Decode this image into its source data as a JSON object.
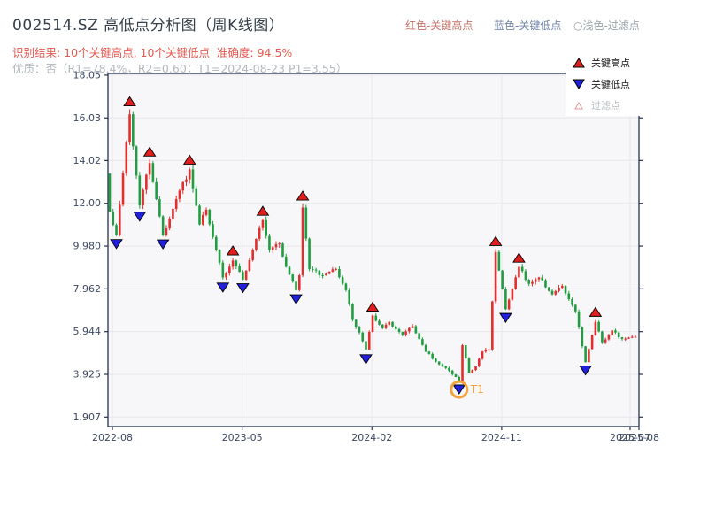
{
  "header": {
    "title": "002514.SZ 高低点分析图（周K线图）",
    "color_legend": [
      {
        "label": "红色-关键高点",
        "color": "#c4736b",
        "x": 458
      },
      {
        "label": "蓝色-关键低点",
        "color": "#7386a8",
        "x": 558
      },
      {
        "label": "○浅色-过滤点",
        "color": "#99a3a9",
        "x": 648
      }
    ],
    "result_line": "识别结果: 10个关键高点, 10个关键低点  准确度: 94.5%",
    "result_color": "#e25a52",
    "quality_line": "优质：否（R1=78.4%，R2=0.60；T1=2024-08-23 P1=3.55）"
  },
  "chart_legend": {
    "high": "关键高点",
    "low": "关键低点",
    "filter": "过滤点"
  },
  "chart_data": {
    "type": "candlestick",
    "timeframe": "weekly",
    "weeks_total": 159,
    "ylim": [
      1.46,
      18.13
    ],
    "y_tick_values": [
      18.05,
      16.03,
      14.02,
      12.0,
      9.98,
      7.962,
      5.944,
      3.925,
      1.907
    ],
    "y_tick_labels": [
      "18.05",
      "16.03",
      "14.02",
      "12.00",
      "9.980",
      "7.962",
      "5.944",
      "3.925",
      "1.907"
    ],
    "x_ticks": [
      {
        "label": "2022-08",
        "week": 0.8,
        "grid": true
      },
      {
        "label": "2023-05",
        "week": 39.8,
        "grid": true
      },
      {
        "label": "2024-02",
        "week": 78.8,
        "grid": true
      },
      {
        "label": "2024-11",
        "week": 117.8,
        "grid": true
      },
      {
        "label": "2025-07",
        "week": 156.4,
        "grid": true
      },
      {
        "label": "2025-08",
        "week": 159.2,
        "grid": false
      }
    ],
    "open_start": 13.4,
    "path_waypoints": [
      [
        0,
        11.6
      ],
      [
        2,
        10.5
      ],
      [
        6,
        16.2
      ],
      [
        9,
        11.9
      ],
      [
        12,
        13.9
      ],
      [
        16,
        10.5
      ],
      [
        20,
        12.2
      ],
      [
        24,
        13.6
      ],
      [
        27,
        11.0
      ],
      [
        29,
        11.7
      ],
      [
        34,
        8.5
      ],
      [
        37,
        9.3
      ],
      [
        40,
        8.4
      ],
      [
        43,
        9.8
      ],
      [
        46,
        11.2
      ],
      [
        48,
        9.8
      ],
      [
        51,
        10.1
      ],
      [
        53,
        9.0
      ],
      [
        56,
        7.9
      ],
      [
        57,
        8.6
      ],
      [
        58,
        11.8
      ],
      [
        60,
        8.9
      ],
      [
        64,
        8.6
      ],
      [
        68,
        8.9
      ],
      [
        71,
        7.9
      ],
      [
        73,
        6.5
      ],
      [
        75,
        5.9
      ],
      [
        77,
        5.1
      ],
      [
        79,
        6.7
      ],
      [
        82,
        6.1
      ],
      [
        84,
        6.4
      ],
      [
        88,
        5.8
      ],
      [
        91,
        6.2
      ],
      [
        95,
        5.0
      ],
      [
        99,
        4.4
      ],
      [
        102,
        4.1
      ],
      [
        104,
        3.8
      ],
      [
        105,
        3.6
      ],
      [
        106,
        5.3
      ],
      [
        108,
        4.0
      ],
      [
        110,
        4.3
      ],
      [
        112,
        5.0
      ],
      [
        114,
        5.1
      ],
      [
        116,
        9.7
      ],
      [
        119,
        7.0
      ],
      [
        123,
        9.0
      ],
      [
        126,
        8.2
      ],
      [
        129,
        8.5
      ],
      [
        133,
        7.7
      ],
      [
        136,
        8.1
      ],
      [
        140,
        6.9
      ],
      [
        143,
        4.5
      ],
      [
        146,
        6.4
      ],
      [
        148,
        5.4
      ],
      [
        151,
        6.0
      ],
      [
        154,
        5.6
      ],
      [
        158,
        5.7
      ]
    ],
    "key_highs": {
      "weeks": [
        6,
        12,
        24,
        37,
        46,
        58,
        79,
        116,
        123,
        146
      ],
      "prices": [
        16.2,
        13.9,
        13.6,
        9.3,
        11.2,
        11.8,
        6.9,
        9.9,
        9.0,
        6.4
      ]
    },
    "key_lows": {
      "weeks": [
        2,
        9,
        16,
        34,
        40,
        56,
        77,
        105,
        119,
        143
      ],
      "prices": [
        10.3,
        11.8,
        10.4,
        8.4,
        8.3,
        7.8,
        4.9,
        3.55,
        6.9,
        4.4
      ]
    },
    "t1": {
      "week": 105,
      "label": "T1",
      "date": "2024-08-23",
      "price": 3.55
    },
    "colors": {
      "up": "#e12e2e",
      "down": "#1f9d40",
      "key_high": "#e11d1d",
      "key_low": "#2020dd",
      "marker_edge": "#000000",
      "filter_edge": "#dd9999",
      "t1": "#f2a33c",
      "axis": "#25324e",
      "grid": "#e7e7ec",
      "plot_bg": "#f7f7f9",
      "tick_label": "#3c4862"
    }
  }
}
